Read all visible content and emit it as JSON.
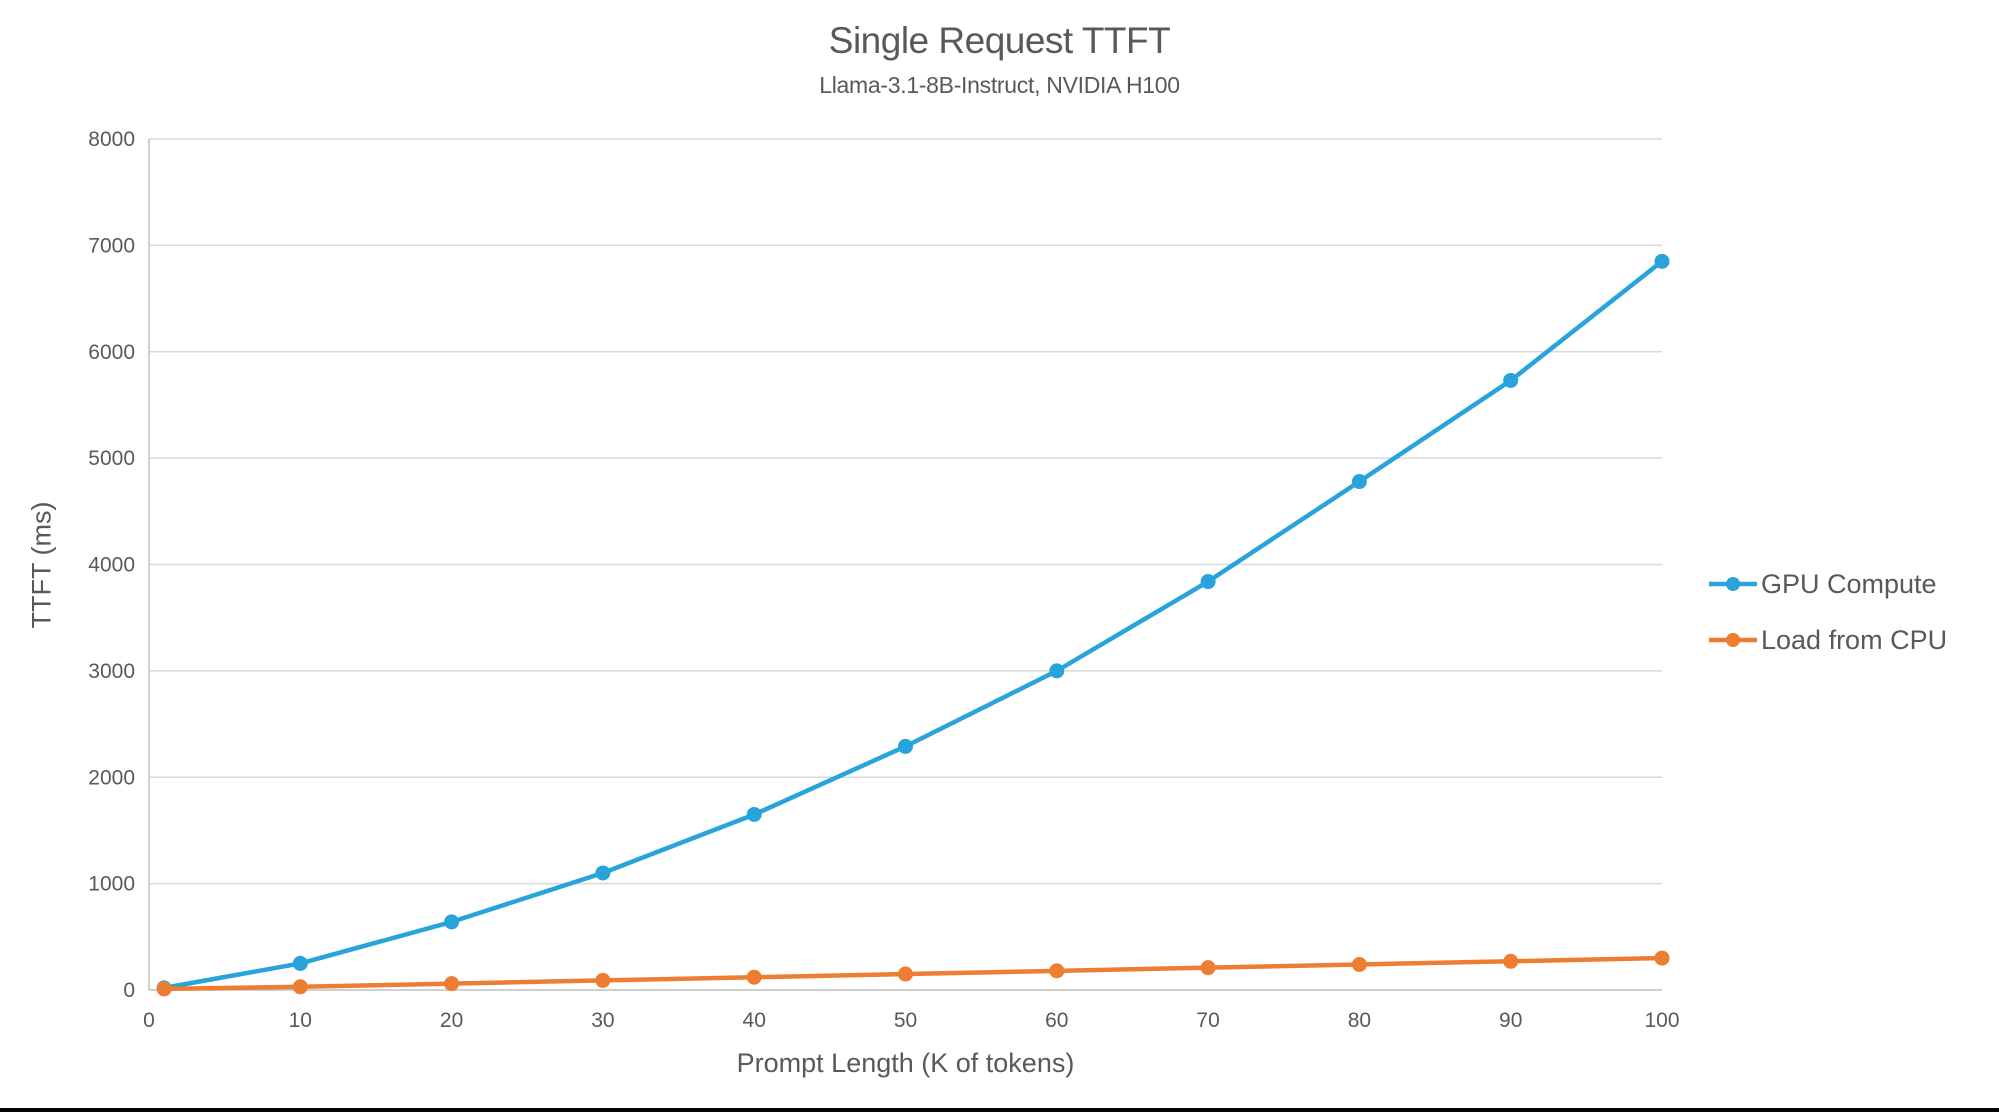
{
  "chart_data": {
    "type": "line",
    "title": "Single Request TTFT",
    "subtitle": "Llama-3.1-8B-Instruct, NVIDIA H100",
    "xlabel": "Prompt Length (K of tokens)",
    "ylabel": "TTFT (ms)",
    "x": [
      1,
      10,
      20,
      30,
      40,
      50,
      60,
      70,
      80,
      90,
      100
    ],
    "series": [
      {
        "name": "GPU Compute",
        "color": "#29A3DC",
        "values": [
          20,
          250,
          640,
          1100,
          1650,
          2290,
          3000,
          3840,
          4780,
          5730,
          6850
        ]
      },
      {
        "name": "Load from CPU",
        "color": "#ED7D31",
        "values": [
          10,
          30,
          60,
          90,
          120,
          150,
          180,
          210,
          240,
          270,
          300
        ]
      }
    ],
    "xlim": [
      0,
      100
    ],
    "ylim": [
      0,
      8000
    ],
    "xticks": [
      0,
      10,
      20,
      30,
      40,
      50,
      60,
      70,
      80,
      90,
      100
    ],
    "yticks": [
      0,
      1000,
      2000,
      3000,
      4000,
      5000,
      6000,
      7000,
      8000
    ],
    "grid": "horizontal-only",
    "legend_position": "right"
  },
  "colors": {
    "text": "#595959",
    "gridline": "#D9D9D9",
    "axis_line": "#BFBFBF",
    "bottom_bar": "#050505"
  }
}
